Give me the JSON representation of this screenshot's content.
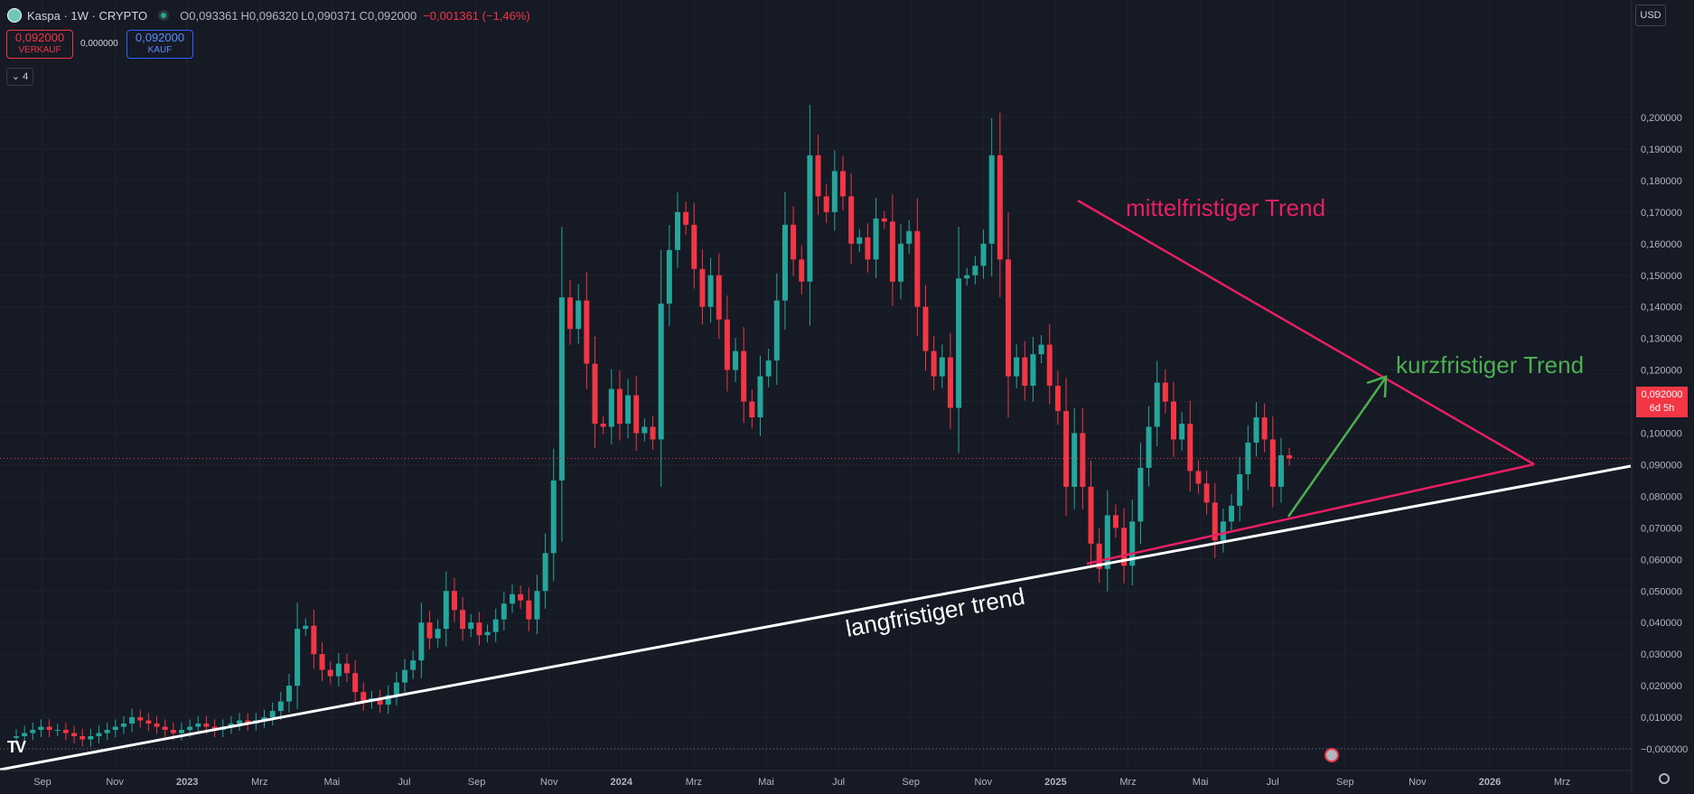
{
  "header": {
    "symbol": "Kaspa · 1W · CRYPTO",
    "o": "O0,093361",
    "h": "H0,096320",
    "l": "L0,090371",
    "c": "C0,092000",
    "change": "−0,001361 (−1,46%)"
  },
  "trade": {
    "sell_price": "0,092000",
    "sell_label": "VERKAUF",
    "spread": "0,000000",
    "buy_price": "0,092000",
    "buy_label": "KAUF"
  },
  "indicator_count": "4",
  "currency": "USD",
  "price_label": {
    "price": "0,092000",
    "countdown": "6d 5h"
  },
  "colors": {
    "up": "#26a69a",
    "down": "#f23645",
    "bg": "#161a25",
    "pink": "#e91e63",
    "green": "#4caf50",
    "white": "#ffffff"
  },
  "chart_data": {
    "type": "candlestick",
    "title": "Kaspa · 1W · CRYPTO",
    "ylim": [
      -0.005,
      0.206
    ],
    "y_ticks": [
      "0,200000",
      "0,190000",
      "0,180000",
      "0,170000",
      "0,160000",
      "0,150000",
      "0,140000",
      "0,130000",
      "0,120000",
      "0,110000",
      "0,100000",
      "0,090000",
      "0,080000",
      "0,070000",
      "0,060000",
      "0,050000",
      "0,040000",
      "0,030000",
      "0,020000",
      "0,010000",
      "−0,000000"
    ],
    "x_ticks": [
      "Sep",
      "Nov",
      "2023",
      "Mrz",
      "Mai",
      "Jul",
      "Sep",
      "Nov",
      "2024",
      "Mrz",
      "Mai",
      "Jul",
      "Sep",
      "Nov",
      "2025",
      "Mrz",
      "Mai",
      "Jul",
      "Sep",
      "Nov",
      "2026",
      "Mrz"
    ],
    "last_price": 0.092,
    "closes": [
      0.004,
      0.005,
      0.006,
      0.007,
      0.006,
      0.006,
      0.005,
      0.004,
      0.003,
      0.004,
      0.005,
      0.006,
      0.007,
      0.008,
      0.01,
      0.009,
      0.008,
      0.007,
      0.006,
      0.005,
      0.006,
      0.007,
      0.008,
      0.007,
      0.006,
      0.007,
      0.008,
      0.009,
      0.008,
      0.009,
      0.01,
      0.012,
      0.015,
      0.02,
      0.038,
      0.039,
      0.03,
      0.025,
      0.023,
      0.027,
      0.024,
      0.018,
      0.015,
      0.016,
      0.014,
      0.017,
      0.021,
      0.025,
      0.028,
      0.04,
      0.035,
      0.038,
      0.05,
      0.044,
      0.038,
      0.04,
      0.036,
      0.037,
      0.041,
      0.046,
      0.049,
      0.047,
      0.041,
      0.05,
      0.062,
      0.085,
      0.143,
      0.133,
      0.142,
      0.122,
      0.103,
      0.102,
      0.114,
      0.103,
      0.112,
      0.1,
      0.102,
      0.098,
      0.141,
      0.158,
      0.17,
      0.166,
      0.152,
      0.14,
      0.15,
      0.136,
      0.12,
      0.126,
      0.11,
      0.105,
      0.118,
      0.123,
      0.142,
      0.166,
      0.155,
      0.148,
      0.188,
      0.175,
      0.17,
      0.183,
      0.175,
      0.16,
      0.162,
      0.155,
      0.168,
      0.167,
      0.148,
      0.16,
      0.164,
      0.14,
      0.126,
      0.118,
      0.124,
      0.108,
      0.149,
      0.15,
      0.153,
      0.16,
      0.188,
      0.155,
      0.118,
      0.124,
      0.115,
      0.125,
      0.128,
      0.115,
      0.107,
      0.083,
      0.1,
      0.083,
      0.065,
      0.057,
      0.074,
      0.07,
      0.058,
      0.072,
      0.089,
      0.102,
      0.116,
      0.11,
      0.098,
      0.103,
      0.088,
      0.084,
      0.078,
      0.066,
      0.072,
      0.077,
      0.087,
      0.097,
      0.105,
      0.098,
      0.083,
      0.093,
      0.092
    ]
  },
  "annotations": {
    "mid_trend": "mittelfristiger Trend",
    "short_trend": "kurzfristiger Trend",
    "long_trend": "langfristiger trend"
  }
}
